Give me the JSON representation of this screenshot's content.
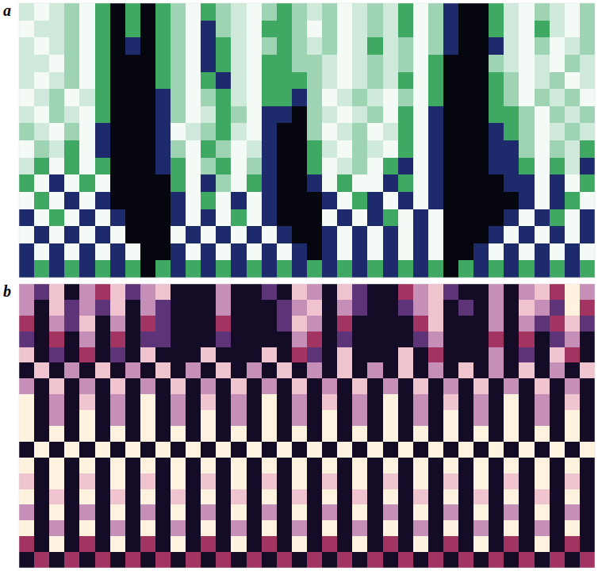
{
  "chart_data": [
    {
      "type": "heatmap",
      "title": "a",
      "tick_labels": false,
      "colors": [
        "#f4fbf6",
        "#cfe9da",
        "#9ed3b4",
        "#3fa862",
        "#1d2a6c",
        "#06060f"
      ],
      "cells": [
        [
          1,
          0,
          1,
          2,
          0,
          3,
          5,
          3,
          5,
          3,
          2,
          0,
          3,
          2,
          1,
          0,
          2,
          3,
          2,
          1,
          2,
          0,
          1,
          2,
          1,
          3,
          0,
          2,
          4,
          5,
          5,
          3,
          1,
          0,
          2,
          1,
          0,
          2
        ],
        [
          0,
          1,
          1,
          2,
          0,
          3,
          5,
          3,
          5,
          3,
          2,
          0,
          4,
          2,
          1,
          0,
          3,
          3,
          2,
          0,
          2,
          0,
          1,
          2,
          1,
          3,
          0,
          2,
          4,
          5,
          5,
          3,
          1,
          0,
          3,
          1,
          0,
          2
        ],
        [
          1,
          0,
          1,
          2,
          0,
          3,
          5,
          4,
          5,
          3,
          2,
          0,
          4,
          3,
          1,
          0,
          2,
          3,
          2,
          1,
          2,
          0,
          1,
          3,
          1,
          2,
          0,
          2,
          4,
          5,
          5,
          4,
          1,
          0,
          2,
          0,
          1,
          2
        ],
        [
          1,
          1,
          0,
          2,
          0,
          3,
          5,
          5,
          5,
          3,
          2,
          0,
          4,
          3,
          1,
          0,
          3,
          3,
          2,
          2,
          1,
          0,
          1,
          2,
          1,
          2,
          0,
          3,
          5,
          5,
          5,
          2,
          1,
          0,
          1,
          0,
          2,
          1
        ],
        [
          1,
          0,
          1,
          2,
          0,
          3,
          5,
          5,
          5,
          3,
          2,
          0,
          3,
          4,
          1,
          0,
          3,
          3,
          3,
          2,
          1,
          0,
          1,
          2,
          1,
          3,
          0,
          3,
          5,
          5,
          5,
          3,
          2,
          0,
          1,
          2,
          0,
          1
        ],
        [
          0,
          1,
          2,
          0,
          1,
          3,
          5,
          5,
          5,
          4,
          2,
          0,
          2,
          3,
          1,
          0,
          3,
          3,
          4,
          2,
          0,
          1,
          2,
          1,
          0,
          2,
          0,
          3,
          5,
          5,
          5,
          3,
          2,
          0,
          2,
          1,
          2,
          0
        ],
        [
          1,
          0,
          2,
          1,
          0,
          3,
          5,
          5,
          5,
          4,
          2,
          0,
          1,
          3,
          2,
          0,
          4,
          4,
          5,
          2,
          1,
          0,
          1,
          2,
          0,
          3,
          0,
          4,
          5,
          5,
          5,
          3,
          3,
          2,
          0,
          2,
          1,
          2
        ],
        [
          2,
          1,
          0,
          2,
          0,
          4,
          5,
          5,
          5,
          4,
          0,
          1,
          2,
          3,
          1,
          0,
          4,
          5,
          5,
          2,
          0,
          1,
          2,
          0,
          1,
          3,
          0,
          4,
          5,
          5,
          5,
          4,
          3,
          2,
          0,
          1,
          2,
          1
        ],
        [
          0,
          2,
          1,
          3,
          0,
          4,
          5,
          5,
          5,
          4,
          2,
          0,
          3,
          2,
          0,
          1,
          4,
          5,
          5,
          3,
          1,
          0,
          2,
          1,
          0,
          3,
          0,
          4,
          5,
          5,
          5,
          4,
          4,
          2,
          0,
          2,
          1,
          3
        ],
        [
          1,
          3,
          0,
          3,
          0,
          3,
          5,
          5,
          5,
          4,
          3,
          0,
          2,
          3,
          0,
          2,
          4,
          5,
          5,
          3,
          0,
          1,
          2,
          0,
          3,
          4,
          0,
          4,
          5,
          5,
          5,
          4,
          4,
          3,
          0,
          3,
          1,
          4
        ],
        [
          3,
          0,
          4,
          0,
          3,
          0,
          5,
          5,
          5,
          5,
          3,
          0,
          4,
          2,
          0,
          3,
          4,
          5,
          5,
          4,
          0,
          3,
          0,
          0,
          4,
          3,
          0,
          4,
          5,
          5,
          5,
          5,
          4,
          4,
          0,
          4,
          0,
          3
        ],
        [
          0,
          3,
          0,
          4,
          0,
          4,
          5,
          5,
          5,
          5,
          4,
          0,
          3,
          0,
          4,
          0,
          4,
          5,
          5,
          5,
          4,
          0,
          3,
          4,
          0,
          4,
          0,
          4,
          5,
          5,
          5,
          5,
          5,
          4,
          0,
          4,
          3,
          0
        ],
        [
          4,
          0,
          3,
          0,
          4,
          0,
          4,
          5,
          5,
          5,
          4,
          0,
          4,
          0,
          3,
          0,
          4,
          5,
          5,
          5,
          0,
          4,
          0,
          4,
          3,
          0,
          4,
          0,
          5,
          5,
          5,
          5,
          4,
          0,
          4,
          3,
          0,
          4
        ],
        [
          0,
          4,
          0,
          4,
          0,
          4,
          0,
          5,
          5,
          5,
          0,
          4,
          0,
          4,
          0,
          4,
          0,
          4,
          5,
          5,
          4,
          0,
          4,
          0,
          4,
          0,
          4,
          0,
          5,
          5,
          5,
          4,
          0,
          4,
          0,
          4,
          0,
          4
        ],
        [
          4,
          0,
          4,
          0,
          4,
          0,
          4,
          0,
          5,
          5,
          4,
          0,
          4,
          0,
          4,
          0,
          4,
          0,
          4,
          5,
          4,
          0,
          4,
          0,
          4,
          0,
          4,
          0,
          5,
          5,
          4,
          0,
          4,
          0,
          4,
          0,
          4,
          0
        ],
        [
          4,
          3,
          4,
          3,
          4,
          3,
          4,
          3,
          5,
          3,
          4,
          3,
          4,
          3,
          4,
          3,
          4,
          3,
          4,
          3,
          4,
          3,
          4,
          3,
          4,
          3,
          4,
          3,
          5,
          3,
          4,
          3,
          4,
          3,
          4,
          3,
          4,
          3
        ]
      ]
    },
    {
      "type": "heatmap",
      "title": "b",
      "tick_labels": false,
      "colors": [
        "#fff3df",
        "#efc4cf",
        "#c68fb7",
        "#a23462",
        "#5e3478",
        "#140c26"
      ],
      "cells": [
        [
          2,
          4,
          1,
          5,
          2,
          3,
          1,
          4,
          2,
          1,
          5,
          5,
          5,
          2,
          5,
          5,
          4,
          5,
          1,
          2,
          5,
          1,
          4,
          5,
          5,
          3,
          2,
          1,
          4,
          5,
          5,
          2,
          5,
          2,
          1,
          3,
          0,
          2
        ],
        [
          2,
          5,
          1,
          4,
          2,
          4,
          1,
          5,
          2,
          4,
          5,
          5,
          5,
          2,
          5,
          5,
          5,
          4,
          2,
          1,
          5,
          2,
          4,
          5,
          5,
          4,
          2,
          1,
          5,
          4,
          5,
          2,
          5,
          1,
          2,
          4,
          0,
          3
        ],
        [
          3,
          5,
          2,
          4,
          1,
          5,
          2,
          5,
          3,
          4,
          5,
          5,
          5,
          3,
          5,
          5,
          5,
          4,
          1,
          2,
          5,
          3,
          5,
          5,
          5,
          5,
          3,
          1,
          5,
          5,
          5,
          2,
          5,
          2,
          4,
          3,
          1,
          4
        ],
        [
          4,
          5,
          3,
          5,
          2,
          5,
          3,
          5,
          4,
          4,
          5,
          5,
          5,
          4,
          5,
          5,
          5,
          5,
          2,
          3,
          5,
          4,
          5,
          5,
          5,
          5,
          4,
          2,
          5,
          5,
          5,
          3,
          5,
          3,
          5,
          4,
          2,
          5
        ],
        [
          1,
          5,
          4,
          5,
          3,
          5,
          4,
          5,
          1,
          5,
          5,
          5,
          1,
          5,
          5,
          5,
          1,
          5,
          3,
          4,
          5,
          1,
          5,
          5,
          5,
          1,
          5,
          3,
          5,
          5,
          5,
          2,
          5,
          4,
          5,
          1,
          3,
          5
        ],
        [
          5,
          1,
          5,
          2,
          5,
          1,
          5,
          2,
          5,
          1,
          5,
          2,
          5,
          1,
          5,
          2,
          5,
          1,
          5,
          2,
          5,
          1,
          5,
          2,
          5,
          1,
          5,
          2,
          5,
          1,
          5,
          2,
          5,
          1,
          5,
          2,
          5,
          1
        ],
        [
          2,
          5,
          1,
          5,
          2,
          5,
          1,
          5,
          2,
          5,
          1,
          5,
          2,
          5,
          1,
          5,
          2,
          5,
          1,
          5,
          2,
          5,
          1,
          5,
          2,
          5,
          1,
          5,
          2,
          5,
          1,
          5,
          2,
          5,
          1,
          5,
          2,
          5
        ],
        [
          0,
          5,
          2,
          5,
          1,
          5,
          2,
          5,
          0,
          5,
          2,
          5,
          1,
          5,
          2,
          5,
          0,
          5,
          2,
          5,
          1,
          5,
          2,
          5,
          0,
          5,
          2,
          5,
          1,
          5,
          2,
          5,
          0,
          5,
          2,
          5,
          1,
          5
        ],
        [
          0,
          5,
          2,
          5,
          0,
          5,
          2,
          5,
          0,
          5,
          2,
          5,
          0,
          5,
          2,
          5,
          0,
          5,
          2,
          5,
          0,
          5,
          2,
          5,
          0,
          5,
          2,
          5,
          0,
          5,
          2,
          5,
          0,
          5,
          2,
          5,
          0,
          5
        ],
        [
          0,
          5,
          0,
          5,
          0,
          5,
          0,
          5,
          0,
          5,
          0,
          5,
          0,
          5,
          0,
          5,
          0,
          5,
          0,
          5,
          0,
          5,
          0,
          5,
          0,
          5,
          0,
          5,
          0,
          5,
          0,
          5,
          0,
          5,
          0,
          5,
          0,
          5
        ],
        [
          5,
          0,
          5,
          0,
          5,
          0,
          5,
          0,
          5,
          0,
          5,
          0,
          5,
          0,
          5,
          0,
          5,
          0,
          5,
          0,
          5,
          0,
          5,
          0,
          5,
          0,
          5,
          0,
          5,
          0,
          5,
          0,
          5,
          0,
          5,
          0,
          5,
          0
        ],
        [
          0,
          5,
          0,
          5,
          0,
          5,
          0,
          5,
          0,
          5,
          0,
          5,
          0,
          5,
          0,
          5,
          0,
          5,
          0,
          5,
          0,
          5,
          0,
          5,
          0,
          5,
          0,
          5,
          0,
          5,
          0,
          5,
          0,
          5,
          0,
          5,
          0,
          5
        ],
        [
          1,
          5,
          0,
          5,
          1,
          5,
          0,
          5,
          1,
          5,
          0,
          5,
          1,
          5,
          0,
          5,
          1,
          5,
          0,
          5,
          1,
          5,
          0,
          5,
          1,
          5,
          0,
          5,
          1,
          5,
          0,
          5,
          1,
          5,
          0,
          5,
          1,
          5
        ],
        [
          0,
          5,
          1,
          5,
          0,
          5,
          1,
          5,
          0,
          5,
          1,
          5,
          0,
          5,
          1,
          5,
          0,
          5,
          1,
          5,
          0,
          5,
          1,
          5,
          0,
          5,
          1,
          5,
          0,
          5,
          1,
          5,
          0,
          5,
          1,
          5,
          0,
          5
        ],
        [
          2,
          5,
          0,
          5,
          2,
          5,
          0,
          5,
          2,
          5,
          0,
          5,
          2,
          5,
          0,
          5,
          2,
          5,
          0,
          5,
          2,
          5,
          0,
          5,
          2,
          5,
          0,
          5,
          2,
          5,
          0,
          5,
          2,
          5,
          0,
          5,
          2,
          5
        ],
        [
          0,
          5,
          2,
          5,
          0,
          5,
          2,
          5,
          0,
          5,
          2,
          5,
          0,
          5,
          2,
          5,
          0,
          5,
          2,
          5,
          0,
          5,
          2,
          5,
          0,
          5,
          2,
          5,
          0,
          5,
          2,
          5,
          0,
          5,
          2,
          5,
          0,
          5
        ],
        [
          3,
          5,
          0,
          5,
          3,
          5,
          0,
          5,
          3,
          5,
          0,
          5,
          3,
          5,
          0,
          5,
          3,
          5,
          0,
          5,
          3,
          5,
          0,
          5,
          3,
          5,
          0,
          5,
          3,
          5,
          0,
          5,
          3,
          5,
          0,
          5,
          3,
          5
        ],
        [
          5,
          3,
          5,
          3,
          5,
          3,
          5,
          3,
          5,
          3,
          5,
          3,
          5,
          3,
          5,
          3,
          5,
          3,
          5,
          3,
          5,
          3,
          5,
          3,
          5,
          3,
          5,
          3,
          5,
          3,
          5,
          3,
          5,
          3,
          5,
          3,
          5,
          3
        ]
      ]
    }
  ]
}
